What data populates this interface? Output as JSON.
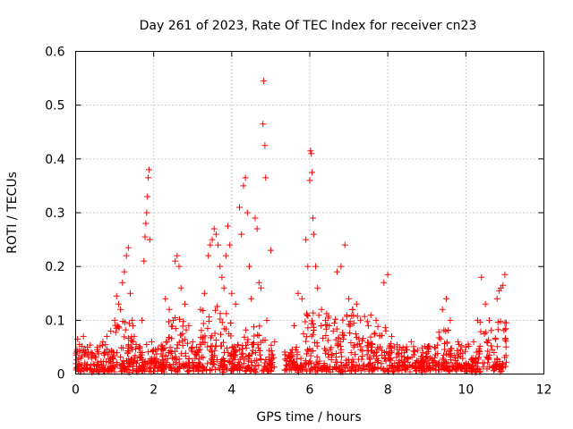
{
  "chart_data": {
    "type": "scatter",
    "title": "Day 261 of 2023, Rate Of TEC Index for receiver cn23",
    "xlabel": "GPS time / hours",
    "ylabel": "ROTI / TECUs",
    "xlim": [
      0,
      12
    ],
    "ylim": [
      0,
      0.6
    ],
    "x_ticks": [
      0,
      2,
      4,
      6,
      8,
      10,
      12
    ],
    "x_tick_labels": [
      "0",
      "2",
      "4",
      "6",
      "8",
      "10",
      "12"
    ],
    "y_ticks": [
      0,
      0.1,
      0.2,
      0.3,
      0.4,
      0.5,
      0.6
    ],
    "y_tick_labels": [
      "0",
      "0.1",
      "0.2",
      "0.3",
      "0.4",
      "0.5",
      "0.6"
    ],
    "grid": true,
    "marker": "+",
    "color": "#ff0000",
    "series": [
      {
        "name": "ROTI",
        "points": [
          [
            0.05,
            0.065
          ],
          [
            0.1,
            0.055
          ],
          [
            0.2,
            0.07
          ],
          [
            0.3,
            0.05
          ],
          [
            0.4,
            0.04
          ],
          [
            0.55,
            0.045
          ],
          [
            0.7,
            0.06
          ],
          [
            0.8,
            0.07
          ],
          [
            0.9,
            0.08
          ],
          [
            1.0,
            0.1
          ],
          [
            1.05,
            0.145
          ],
          [
            1.1,
            0.13
          ],
          [
            1.15,
            0.12
          ],
          [
            1.2,
            0.17
          ],
          [
            1.25,
            0.19
          ],
          [
            1.3,
            0.22
          ],
          [
            1.35,
            0.235
          ],
          [
            1.4,
            0.15
          ],
          [
            1.45,
            0.1
          ],
          [
            1.5,
            0.07
          ],
          [
            1.55,
            0.055
          ],
          [
            1.7,
            0.1
          ],
          [
            1.75,
            0.21
          ],
          [
            1.78,
            0.255
          ],
          [
            1.8,
            0.28
          ],
          [
            1.82,
            0.3
          ],
          [
            1.84,
            0.33
          ],
          [
            1.86,
            0.365
          ],
          [
            1.88,
            0.38
          ],
          [
            1.9,
            0.25
          ],
          [
            1.95,
            0.06
          ],
          [
            2.05,
            0.045
          ],
          [
            2.3,
            0.14
          ],
          [
            2.4,
            0.12
          ],
          [
            2.5,
            0.1
          ],
          [
            2.55,
            0.21
          ],
          [
            2.6,
            0.22
          ],
          [
            2.65,
            0.2
          ],
          [
            2.7,
            0.16
          ],
          [
            2.8,
            0.13
          ],
          [
            2.9,
            0.09
          ],
          [
            3.0,
            0.06
          ],
          [
            3.1,
            0.05
          ],
          [
            3.2,
            0.12
          ],
          [
            3.3,
            0.15
          ],
          [
            3.4,
            0.22
          ],
          [
            3.45,
            0.24
          ],
          [
            3.5,
            0.25
          ],
          [
            3.55,
            0.27
          ],
          [
            3.6,
            0.26
          ],
          [
            3.65,
            0.24
          ],
          [
            3.7,
            0.2
          ],
          [
            3.75,
            0.18
          ],
          [
            3.8,
            0.16
          ],
          [
            3.85,
            0.22
          ],
          [
            3.9,
            0.275
          ],
          [
            3.95,
            0.24
          ],
          [
            4.0,
            0.15
          ],
          [
            4.1,
            0.13
          ],
          [
            4.2,
            0.31
          ],
          [
            4.25,
            0.26
          ],
          [
            4.3,
            0.35
          ],
          [
            4.35,
            0.365
          ],
          [
            4.4,
            0.3
          ],
          [
            4.45,
            0.2
          ],
          [
            4.5,
            0.14
          ],
          [
            4.6,
            0.29
          ],
          [
            4.65,
            0.27
          ],
          [
            4.7,
            0.17
          ],
          [
            4.75,
            0.16
          ],
          [
            4.8,
            0.465
          ],
          [
            4.82,
            0.545
          ],
          [
            4.85,
            0.425
          ],
          [
            4.87,
            0.365
          ],
          [
            4.9,
            0.1
          ],
          [
            5.0,
            0.23
          ],
          [
            5.1,
            0.06
          ],
          [
            5.5,
            0.04
          ],
          [
            5.6,
            0.09
          ],
          [
            5.7,
            0.15
          ],
          [
            5.8,
            0.14
          ],
          [
            5.9,
            0.25
          ],
          [
            5.95,
            0.2
          ],
          [
            6.0,
            0.36
          ],
          [
            6.02,
            0.415
          ],
          [
            6.04,
            0.41
          ],
          [
            6.06,
            0.375
          ],
          [
            6.08,
            0.29
          ],
          [
            6.1,
            0.26
          ],
          [
            6.15,
            0.2
          ],
          [
            6.2,
            0.16
          ],
          [
            6.3,
            0.12
          ],
          [
            6.4,
            0.1
          ],
          [
            6.5,
            0.09
          ],
          [
            6.6,
            0.08
          ],
          [
            6.7,
            0.19
          ],
          [
            6.8,
            0.2
          ],
          [
            6.9,
            0.24
          ],
          [
            7.0,
            0.14
          ],
          [
            7.1,
            0.12
          ],
          [
            7.2,
            0.13
          ],
          [
            7.3,
            0.1
          ],
          [
            7.5,
            0.09
          ],
          [
            7.7,
            0.1
          ],
          [
            7.9,
            0.17
          ],
          [
            8.0,
            0.185
          ],
          [
            8.1,
            0.07
          ],
          [
            8.3,
            0.05
          ],
          [
            8.6,
            0.06
          ],
          [
            8.9,
            0.04
          ],
          [
            9.2,
            0.05
          ],
          [
            9.4,
            0.12
          ],
          [
            9.5,
            0.14
          ],
          [
            9.6,
            0.1
          ],
          [
            9.8,
            0.06
          ],
          [
            10.0,
            0.05
          ],
          [
            10.2,
            0.06
          ],
          [
            10.3,
            0.1
          ],
          [
            10.4,
            0.18
          ],
          [
            10.5,
            0.13
          ],
          [
            10.6,
            0.1
          ],
          [
            10.8,
            0.14
          ],
          [
            10.85,
            0.155
          ],
          [
            10.9,
            0.16
          ],
          [
            10.95,
            0.165
          ],
          [
            11.0,
            0.185
          ]
        ]
      }
    ]
  }
}
